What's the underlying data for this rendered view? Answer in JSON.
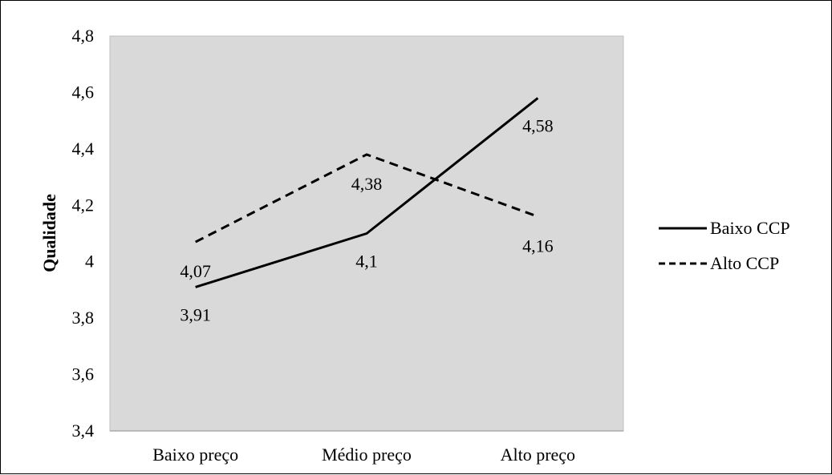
{
  "chart_data": {
    "type": "line",
    "title": "",
    "xlabel": "",
    "ylabel": "Qualidade",
    "categories": [
      "Baixo preço",
      "Médio preço",
      "Alto preço"
    ],
    "ylim": [
      3.4,
      4.8
    ],
    "ytick_values": [
      3.4,
      3.6,
      3.8,
      4.0,
      4.2,
      4.4,
      4.6,
      4.8
    ],
    "ytick_labels": [
      "3,4",
      "3,6",
      "3,8",
      "4",
      "4,2",
      "4,4",
      "4,6",
      "4,8"
    ],
    "grid": false,
    "legend_position": "right",
    "plot_background": "#d9d9d9",
    "series": [
      {
        "name": "Baixo CCP",
        "values": [
          3.91,
          4.1,
          4.58
        ],
        "labels": [
          "3,91",
          "4,1",
          "4,58"
        ],
        "style": "solid",
        "color": "#000000"
      },
      {
        "name": "Alto CCP",
        "values": [
          4.07,
          4.38,
          4.16
        ],
        "labels": [
          "4,07",
          "4,38",
          "4,16"
        ],
        "style": "dashed",
        "color": "#000000"
      }
    ]
  }
}
